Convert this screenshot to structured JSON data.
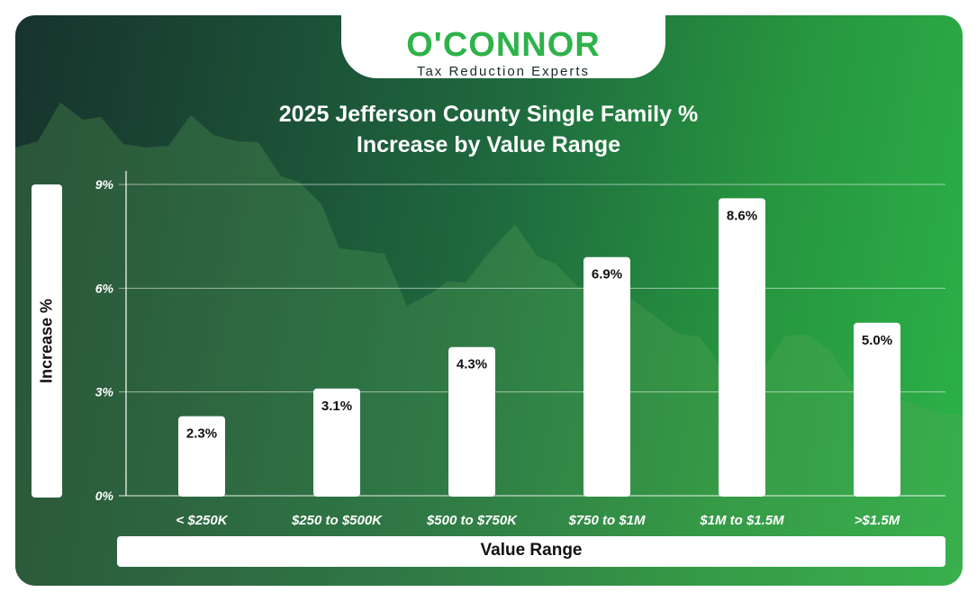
{
  "brand": {
    "logo_text": "O'CONNOR",
    "tagline": "Tax Reduction Experts",
    "accent": "#2eb24a"
  },
  "chart_data": {
    "type": "bar",
    "title_line1": "2025 Jefferson County Single Family %",
    "title_line2": "Increase by Value Range",
    "xlabel": "Value Range",
    "ylabel": "Increase %",
    "categories": [
      "< $250K",
      "$250 to $500K",
      "$500 to $750K",
      "$750 to $1M",
      "$1M to $1.5M",
      ">$1.5M"
    ],
    "values": [
      2.3,
      3.1,
      4.3,
      6.9,
      8.6,
      5.0
    ],
    "data_labels": [
      "2.3%",
      "3.1%",
      "4.3%",
      "6.9%",
      "8.6%",
      "5.0%"
    ],
    "ylim": [
      0,
      9
    ],
    "yticks": [
      0,
      3,
      6,
      9
    ],
    "ytick_labels": [
      "0%",
      "3%",
      "6%",
      "9%"
    ],
    "grid": true,
    "bar_color": "#ffffff",
    "background_colors": [
      "#17332d",
      "#2cb349"
    ]
  }
}
